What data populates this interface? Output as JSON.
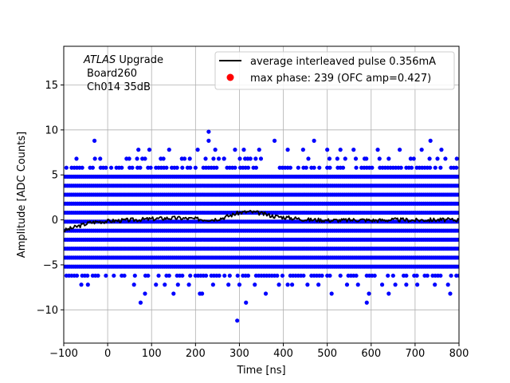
{
  "chart_data": {
    "type": "scatter",
    "xlabel": "Time [ns]",
    "ylabel": "Amplitude [ADC Counts]",
    "xlim": [
      -100,
      800
    ],
    "ylim": [
      -13.7,
      19.3
    ],
    "xticks": [
      -100,
      0,
      100,
      200,
      300,
      400,
      500,
      600,
      700,
      800
    ],
    "yticks": [
      -10,
      -5,
      0,
      5,
      10,
      15
    ],
    "grid": true,
    "legend_position": "top-right",
    "annotation": {
      "atlas": "ATLAS",
      "upgrade": " Upgrade",
      "board": "Board260",
      "channel": "Ch014 35dB"
    },
    "series": [
      {
        "name": "average interleaved pulse 0.356mA",
        "kind": "line",
        "color": "#000000",
        "x": [
          -100,
          -80,
          -60,
          -40,
          -20,
          0,
          20,
          40,
          60,
          80,
          100,
          120,
          140,
          160,
          180,
          200,
          220,
          240,
          260,
          280,
          300,
          320,
          340,
          360,
          380,
          400,
          420,
          440,
          460,
          480,
          500,
          520,
          540,
          560,
          580,
          600,
          620,
          640,
          660,
          680,
          700,
          720,
          740,
          760,
          780,
          800
        ],
        "y": [
          -1.2,
          -0.9,
          -0.6,
          -0.3,
          -0.2,
          -0.15,
          -0.1,
          -0.05,
          0.0,
          0.05,
          0.1,
          0.15,
          0.2,
          0.2,
          0.15,
          0.1,
          0.05,
          0.05,
          0.2,
          0.5,
          0.8,
          0.9,
          0.8,
          0.6,
          0.4,
          0.3,
          0.2,
          0.1,
          0.0,
          0.0,
          -0.05,
          -0.05,
          -0.05,
          0.0,
          0.0,
          -0.05,
          -0.05,
          0.0,
          0.0,
          0.0,
          -0.05,
          0.0,
          0.0,
          0.0,
          0.0,
          0.0
        ]
      },
      {
        "name": "max phase: 239 (OFC amp=0.427)",
        "kind": "point",
        "color": "#ff0000",
        "x": [],
        "y": []
      },
      {
        "name": "samples",
        "kind": "scatter",
        "color": "#0000ff",
        "dense_levels": [
          -5.2,
          -4.2,
          -3.2,
          -2.2,
          -1.2,
          -0.2,
          0.8,
          1.8,
          2.8,
          3.8,
          4.8
        ],
        "sparse_levels": [
          5.8,
          -6.2
        ],
        "outliers_x": [
          -30,
          70,
          95,
          140,
          175,
          205,
          230,
          245,
          265,
          290,
          310,
          345,
          380,
          410,
          445,
          470,
          500,
          530,
          560,
          585,
          615,
          640,
          665,
          690,
          715,
          735,
          760,
          795,
          -60,
          -45,
          60,
          85,
          110,
          130,
          160,
          185,
          210,
          240,
          275,
          300,
          335,
          360,
          390,
          420,
          455,
          480,
          510,
          545,
          570,
          595,
          625,
          655,
          680,
          705,
          745,
          775,
          230,
          75,
          315,
          295,
          215,
          590,
          640,
          780,
          150,
          410
        ],
        "outliers_y": [
          8.8,
          7.8,
          7.8,
          7.8,
          6.8,
          7.8,
          8.8,
          7.8,
          6.8,
          7.8,
          7.8,
          7.8,
          8.8,
          7.8,
          7.8,
          8.8,
          7.8,
          7.8,
          7.8,
          6.8,
          7.8,
          6.8,
          7.8,
          6.8,
          7.8,
          8.8,
          7.8,
          6.8,
          -7.2,
          -7.2,
          -7.2,
          -8.2,
          -7.2,
          -7.2,
          -7.2,
          -7.2,
          -8.2,
          -7.2,
          -7.2,
          -7.2,
          -7.2,
          -8.2,
          -7.2,
          -7.2,
          -7.2,
          -7.2,
          -8.2,
          -7.2,
          -7.2,
          -8.2,
          -7.2,
          -7.2,
          -7.2,
          -7.2,
          -7.2,
          -7.2,
          9.8,
          -9.2,
          -9.2,
          -11.2,
          -8.2,
          -9.2,
          -8.2,
          -8.2,
          -8.2,
          -7.2
        ]
      }
    ]
  }
}
